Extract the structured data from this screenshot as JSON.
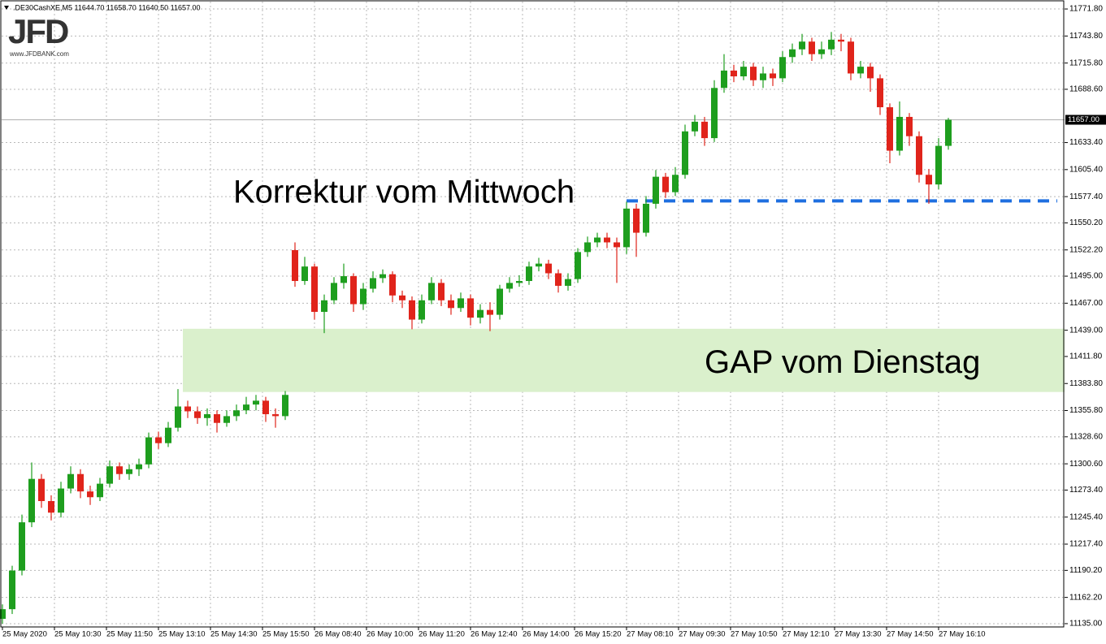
{
  "chart_data": {
    "type": "candlestick",
    "header": ".DE30CashXE,M5  11644.70 11658.70 11640.50 11657.00",
    "logo": "JFD",
    "logo_url": "www.JFDBANK.com",
    "up_color": "#1e9e1e",
    "down_color": "#e0241b",
    "grid": true,
    "xlim": [
      0,
      326.75
    ],
    "ylim": [
      11131.6,
      11781.1
    ],
    "xticks": [
      {
        "value": 0,
        "label": "25 May 2020"
      },
      {
        "value": 16,
        "label": "25 May 10:30"
      },
      {
        "value": 32,
        "label": "25 May 11:50"
      },
      {
        "value": 48,
        "label": "25 May 13:10"
      },
      {
        "value": 64,
        "label": "25 May 14:30"
      },
      {
        "value": 80,
        "label": "25 May 15:50"
      },
      {
        "value": 96,
        "label": "26 May 08:40"
      },
      {
        "value": 112,
        "label": "26 May 10:00"
      },
      {
        "value": 128,
        "label": "26 May 11:20"
      },
      {
        "value": 144,
        "label": "26 May 12:40"
      },
      {
        "value": 160,
        "label": "26 May 14:00"
      },
      {
        "value": 176,
        "label": "26 May 15:20"
      },
      {
        "value": 192,
        "label": "27 May 08:10"
      },
      {
        "value": 208,
        "label": "27 May 09:30"
      },
      {
        "value": 224,
        "label": "27 May 10:50"
      },
      {
        "value": 240,
        "label": "27 May 12:10"
      },
      {
        "value": 256,
        "label": "27 May 13:30"
      },
      {
        "value": 272,
        "label": "27 May 14:50"
      },
      {
        "value": 288,
        "label": "27 May 16:10"
      }
    ],
    "yticks": [
      {
        "value": 11135,
        "label": "11135.00"
      },
      {
        "value": 11162.2,
        "label": "11162.20"
      },
      {
        "value": 11190.2,
        "label": "11190.20"
      },
      {
        "value": 11217.4,
        "label": "11217.40"
      },
      {
        "value": 11245.4,
        "label": "11245.40"
      },
      {
        "value": 11273.4,
        "label": "11273.40"
      },
      {
        "value": 11300.6,
        "label": "11300.60"
      },
      {
        "value": 11328.6,
        "label": "11328.60"
      },
      {
        "value": 11355.8,
        "label": "11355.80"
      },
      {
        "value": 11383.8,
        "label": "11383.80"
      },
      {
        "value": 11411.8,
        "label": "11411.80"
      },
      {
        "value": 11439,
        "label": "11439.00"
      },
      {
        "value": 11467,
        "label": "11467.00"
      },
      {
        "value": 11495,
        "label": "11495.00"
      },
      {
        "value": 11522.2,
        "label": "11522.20"
      },
      {
        "value": 11550.2,
        "label": "11550.20"
      },
      {
        "value": 11577.4,
        "label": "11577.40"
      },
      {
        "value": 11605.4,
        "label": "11605.40"
      },
      {
        "value": 11633.4,
        "label": "11633.40"
      },
      {
        "value": 11688.6,
        "label": "11688.60"
      },
      {
        "value": 11715.8,
        "label": "11715.80"
      },
      {
        "value": 11743.8,
        "label": "11743.80"
      },
      {
        "value": 11771.8,
        "label": "11771.80"
      }
    ],
    "current_price": {
      "value": 11657,
      "label": "11657.00"
    },
    "x": [
      0,
      3,
      6,
      9,
      12,
      15,
      18,
      21,
      24,
      27,
      30,
      33,
      36,
      39,
      42,
      45,
      48,
      51,
      54,
      57,
      60,
      63,
      66,
      69,
      72,
      75,
      78,
      81,
      84,
      87,
      90,
      93,
      96,
      99,
      102,
      105,
      108,
      111,
      114,
      117,
      120,
      123,
      126,
      129,
      132,
      135,
      138,
      141,
      144,
      147,
      150,
      153,
      156,
      159,
      162,
      165,
      168,
      171,
      174,
      177,
      180,
      183,
      186,
      189,
      192,
      195,
      198,
      201,
      204,
      207,
      210,
      213,
      216,
      219,
      222,
      225,
      228,
      231,
      234,
      237,
      240,
      243,
      246,
      249,
      252,
      255,
      258,
      261,
      264,
      267,
      270,
      273,
      276,
      279,
      282,
      285,
      288,
      291
    ],
    "open": [
      11140,
      11150,
      11190,
      11240,
      11285,
      11262,
      11250,
      11275,
      11290,
      11272,
      11266,
      11280,
      11298,
      11290,
      11295,
      11300,
      11328,
      11322,
      11338,
      11360,
      11355,
      11348,
      11352,
      11343,
      11350,
      11356,
      11362,
      11366,
      11352,
      11350,
      11522,
      11490,
      11505,
      11458,
      11470,
      11488,
      11495,
      11466,
      11482,
      11493,
      11497,
      11475,
      11470,
      11450,
      11470,
      11488,
      11470,
      11462,
      11472,
      11452,
      11460,
      11455,
      11482,
      11488,
      11490,
      11505,
      11508,
      11498,
      11485,
      11492,
      11520,
      11530,
      11535,
      11530,
      11525,
      11565,
      11540,
      11570,
      11598,
      11582,
      11600,
      11645,
      11655,
      11638,
      11690,
      11708,
      11702,
      11712,
      11698,
      11705,
      11700,
      11722,
      11730,
      11738,
      11725,
      11730,
      11740,
      11738,
      11705,
      11712,
      11700,
      11670,
      11625,
      11660,
      11640,
      11600,
      11590,
      11630
    ],
    "high": [
      11155,
      11195,
      11248,
      11302,
      11290,
      11268,
      11282,
      11298,
      11295,
      11278,
      11286,
      11304,
      11302,
      11300,
      11306,
      11333,
      11334,
      11344,
      11378,
      11366,
      11360,
      11358,
      11356,
      11356,
      11362,
      11370,
      11372,
      11370,
      11358,
      11376,
      11530,
      11515,
      11508,
      11476,
      11494,
      11508,
      11498,
      11488,
      11500,
      11502,
      11500,
      11480,
      11474,
      11476,
      11494,
      11492,
      11476,
      11478,
      11476,
      11466,
      11468,
      11486,
      11494,
      11496,
      11510,
      11514,
      11512,
      11502,
      11498,
      11524,
      11536,
      11540,
      11540,
      11535,
      11572,
      11570,
      11578,
      11605,
      11602,
      11608,
      11652,
      11662,
      11660,
      11698,
      11725,
      11714,
      11718,
      11716,
      11712,
      11710,
      11728,
      11736,
      11746,
      11742,
      11738,
      11748,
      11746,
      11742,
      11718,
      11716,
      11704,
      11674,
      11676,
      11664,
      11645,
      11606,
      11638,
      11659
    ],
    "low": [
      11135,
      11145,
      11185,
      11235,
      11255,
      11242,
      11245,
      11270,
      11265,
      11258,
      11262,
      11276,
      11284,
      11284,
      11288,
      11296,
      11316,
      11318,
      11334,
      11348,
      11342,
      11340,
      11333,
      11339,
      11345,
      11352,
      11356,
      11344,
      11338,
      11346,
      11484,
      11486,
      11450,
      11436,
      11466,
      11482,
      11458,
      11460,
      11478,
      11488,
      11468,
      11462,
      11440,
      11446,
      11466,
      11464,
      11455,
      11458,
      11444,
      11446,
      11438,
      11450,
      11478,
      11484,
      11486,
      11500,
      11492,
      11478,
      11480,
      11488,
      11515,
      11525,
      11524,
      11488,
      11518,
      11515,
      11536,
      11565,
      11576,
      11578,
      11596,
      11640,
      11630,
      11634,
      11685,
      11696,
      11698,
      11692,
      11690,
      11692,
      11696,
      11716,
      11724,
      11718,
      11720,
      11724,
      11728,
      11698,
      11700,
      11686,
      11662,
      11612,
      11620,
      11630,
      11592,
      11570,
      11585,
      11626
    ],
    "close": [
      11150,
      11190,
      11240,
      11285,
      11262,
      11250,
      11275,
      11290,
      11272,
      11266,
      11280,
      11298,
      11290,
      11295,
      11300,
      11328,
      11322,
      11338,
      11360,
      11355,
      11348,
      11352,
      11343,
      11350,
      11356,
      11362,
      11366,
      11352,
      11350,
      11372,
      11490,
      11505,
      11458,
      11470,
      11488,
      11495,
      11466,
      11482,
      11493,
      11497,
      11475,
      11470,
      11450,
      11470,
      11488,
      11470,
      11462,
      11472,
      11452,
      11460,
      11455,
      11482,
      11488,
      11490,
      11505,
      11508,
      11498,
      11485,
      11492,
      11520,
      11530,
      11535,
      11530,
      11525,
      11565,
      11540,
      11570,
      11598,
      11582,
      11600,
      11645,
      11655,
      11638,
      11690,
      11708,
      11702,
      11712,
      11698,
      11705,
      11700,
      11722,
      11730,
      11738,
      11725,
      11730,
      11740,
      11738,
      11705,
      11712,
      11700,
      11670,
      11625,
      11660,
      11640,
      11600,
      11590,
      11630,
      11657
    ],
    "annotations": [
      {
        "text": "Korrektur vom Mittwoch",
        "x": 71,
        "y": 11580
      },
      {
        "text": "GAP vom Dienstag",
        "x": 216,
        "y": 11404
      }
    ],
    "zone": {
      "xlim": [
        55.5,
        326.75
      ],
      "ylim": [
        11375,
        11440.5
      ],
      "color": "#daf0cc"
    },
    "level": {
      "xlim": [
        192,
        324.5
      ],
      "y": 11573,
      "color": "#1f6fe0"
    }
  }
}
